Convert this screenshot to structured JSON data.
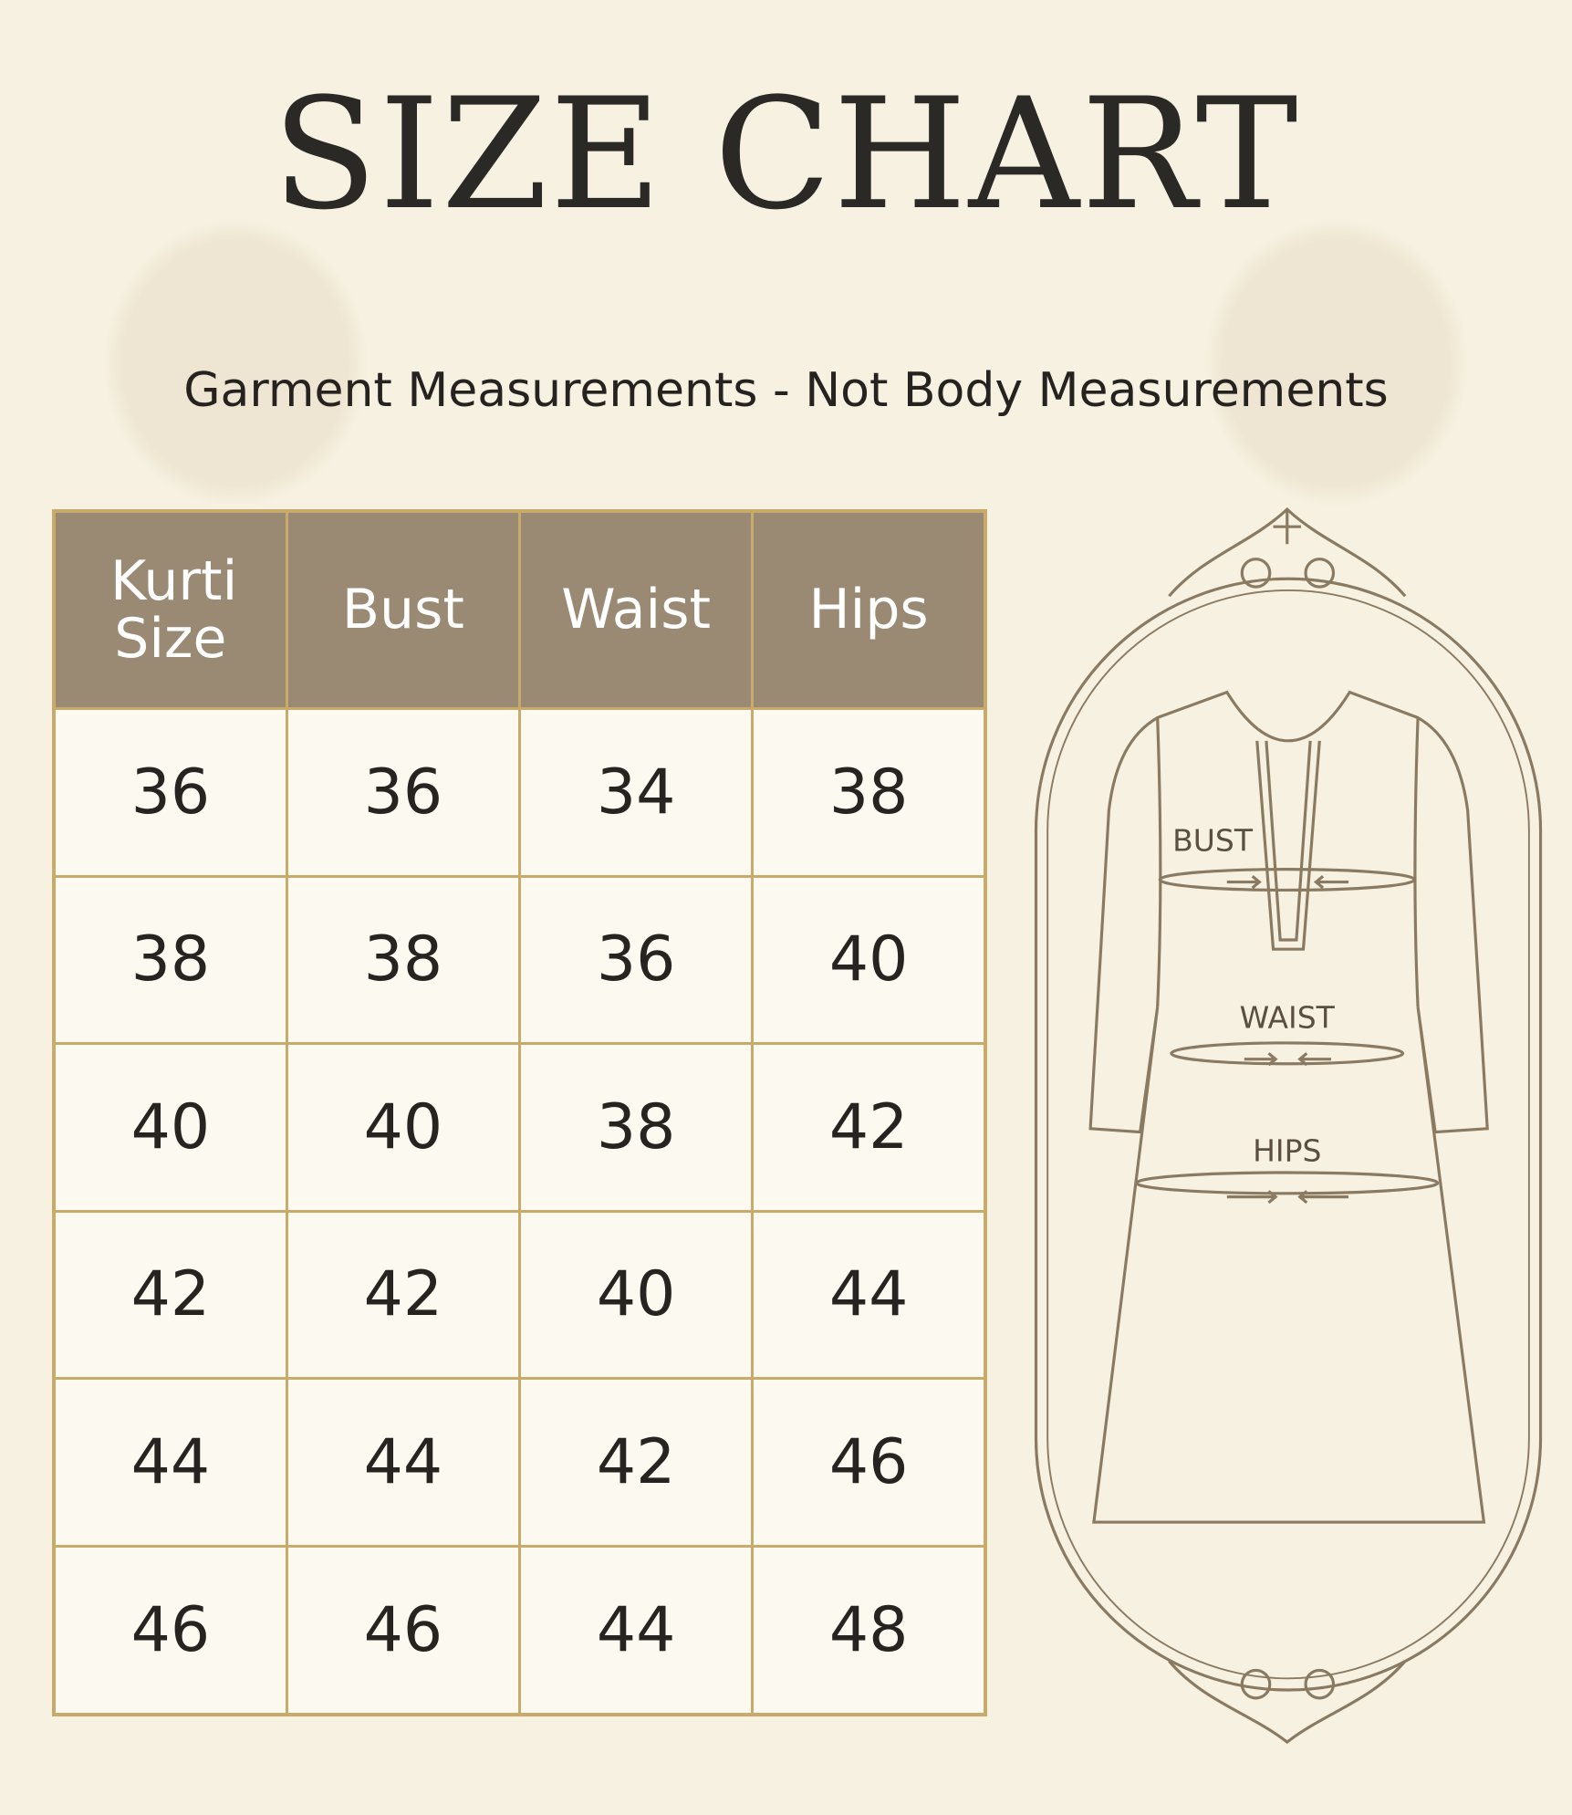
{
  "title": "SIZE CHART",
  "subtitle": "Garment Measurements - Not Body Measurements",
  "table": {
    "headers": [
      "Kurti Size",
      "Bust",
      "Waist",
      "Hips"
    ],
    "rows": [
      [
        "36",
        "36",
        "34",
        "38"
      ],
      [
        "38",
        "38",
        "36",
        "40"
      ],
      [
        "40",
        "40",
        "38",
        "42"
      ],
      [
        "42",
        "42",
        "40",
        "44"
      ],
      [
        "44",
        "44",
        "42",
        "46"
      ],
      [
        "46",
        "46",
        "44",
        "48"
      ]
    ]
  },
  "diagram": {
    "bust_label": "BUST",
    "waist_label": "WAIST",
    "hips_label": "HIPS"
  },
  "colors": {
    "header": "#9a8a74",
    "border": "#c8aa6a",
    "background": "#f6f1e1",
    "line": "#8a7a62"
  }
}
